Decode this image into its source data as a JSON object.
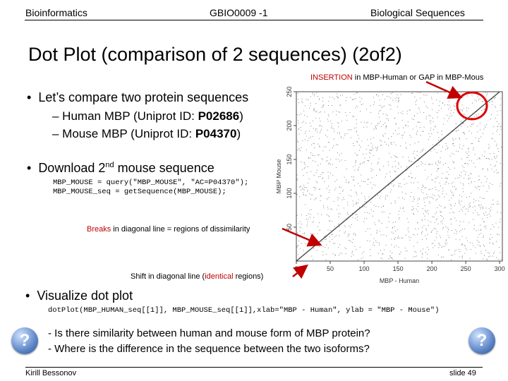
{
  "header": {
    "left": "Bioinformatics",
    "center": "GBIO0009 -1",
    "right": "Biological Sequences"
  },
  "title": "Dot Plot (comparison of 2 sequences) (2of2)",
  "annotation_insertion": {
    "part1": "INSERTION",
    "part2": " in MBP-Human or GAP in MBP-Mous"
  },
  "bullets": {
    "b1": "Let’s compare two protein sequences",
    "human_prefix": "– Human MBP (Uniprot ID: ",
    "human_id": "P02686",
    "human_suffix": ")",
    "mouse_prefix": "– Mouse MBP (Uniprot ID: ",
    "mouse_id": "P04370",
    "mouse_suffix": ")",
    "b2_pre": "Download 2",
    "b2_sup": "nd",
    "b2_post": " mouse sequence",
    "b3": "Visualize dot plot"
  },
  "code": {
    "line1": "MBP_MOUSE = query(\"MBP_MOUSE\", \"AC=P04370\");",
    "line2": "MBP_MOUSE_seq = getSequence(MBP_MOUSE);",
    "line3": "dotPlot(MBP_HUMAN_seq[[1]], MBP_MOUSE_seq[[1]],xlab=\"MBP - Human\", ylab = \"MBP - Mouse\")"
  },
  "annotation_breaks": {
    "part1": "Breaks",
    "part2": " in diagonal line = regions of dissimilarity"
  },
  "annotation_shift": {
    "part1": "Shift in diagonal line (",
    "part2": "identical",
    "part3": " regions)"
  },
  "questions": {
    "q1": "- Is there similarity between human and mouse form of MBP protein?",
    "q2": "- Where is the difference in the sequence between the two isoforms?"
  },
  "question_icon": "?",
  "footer": {
    "author": "Kirill Bessonov",
    "slide": "slide 49"
  },
  "colors": {
    "accent_red": "#c00000",
    "icon_blue": "#5e86c7"
  },
  "chart_data": {
    "type": "scatter",
    "xlabel": "MBP - Human",
    "ylabel": "MBP Mouse",
    "xlim": [
      0,
      304
    ],
    "ylim": [
      0,
      250
    ],
    "x_ticks": [
      "0",
      "50",
      "100",
      "150",
      "200",
      "250",
      "300"
    ],
    "y_ticks": [
      "50",
      "100",
      "150",
      "200",
      "250"
    ]
  }
}
